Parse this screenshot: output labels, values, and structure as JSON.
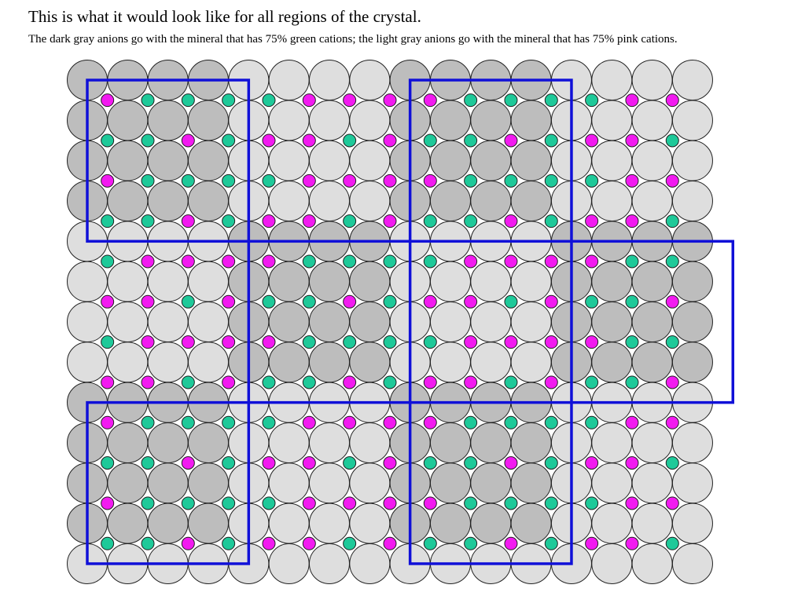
{
  "heading": {
    "title": "This is what it would look like for all regions of the crystal.",
    "subtitle": "The dark gray anions go with the mineral that has 75% green cations; the light gray anions go with the mineral that has 75% pink cations."
  },
  "colors": {
    "dark_anion": "#bdbdbd",
    "light_anion": "#dedede",
    "anion_stroke": "#222222",
    "green_cation": "#1ec999",
    "pink_cation": "#f21af0",
    "region_border": "#1010d8",
    "background": "#ffffff"
  },
  "lattice": {
    "anion_columns": 16,
    "anion_rows": 13,
    "cation_columns": 15,
    "cation_rows": 12,
    "dark_regions": [
      {
        "col_start": 0,
        "col_end": 3,
        "row_start": 0,
        "row_end": 3
      },
      {
        "col_start": 8,
        "col_end": 11,
        "row_start": 0,
        "row_end": 3
      },
      {
        "col_start": 4,
        "col_end": 7,
        "row_start": 4,
        "row_end": 7
      },
      {
        "col_start": 12,
        "col_end": 15,
        "row_start": 4,
        "row_end": 7
      },
      {
        "col_start": 0,
        "col_end": 3,
        "row_start": 8,
        "row_end": 11
      },
      {
        "col_start": 8,
        "col_end": 11,
        "row_start": 8,
        "row_end": 11
      }
    ]
  }
}
